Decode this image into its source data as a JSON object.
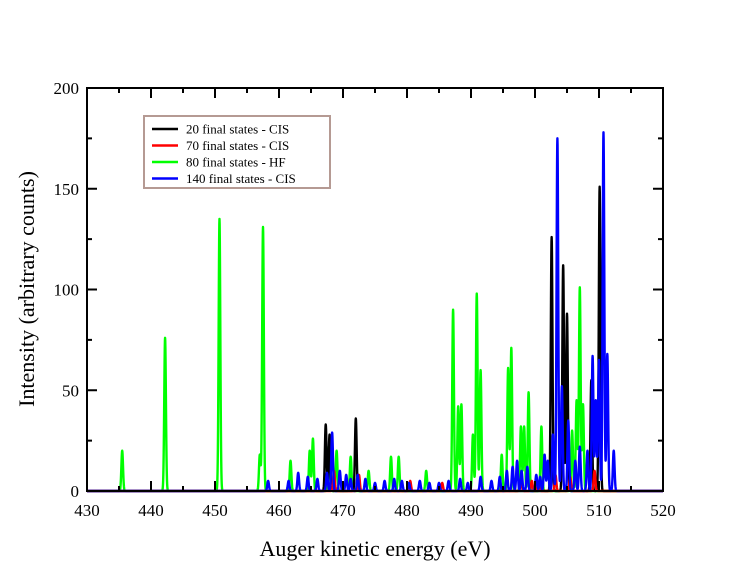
{
  "chart_data": {
    "type": "line",
    "title": "",
    "xlabel": "Auger kinetic energy (eV)",
    "ylabel": "Intensity (arbitrary counts)",
    "xlim": [
      430,
      520
    ],
    "ylim": [
      0,
      200
    ],
    "xticks": [
      430,
      440,
      450,
      460,
      470,
      480,
      490,
      500,
      510,
      520
    ],
    "yticks": [
      0,
      50,
      100,
      150,
      200
    ],
    "grid": false,
    "legend_position": "top-left",
    "series": [
      {
        "name": "80 final states - HF",
        "color": "#00ff00",
        "peaks": [
          [
            435.5,
            20
          ],
          [
            442.2,
            76
          ],
          [
            450.7,
            135
          ],
          [
            457.5,
            131
          ],
          [
            457.0,
            18
          ],
          [
            461.8,
            15
          ],
          [
            464.8,
            20
          ],
          [
            465.3,
            26
          ],
          [
            467.8,
            22
          ],
          [
            469.0,
            20
          ],
          [
            471.2,
            17
          ],
          [
            474.0,
            10
          ],
          [
            477.5,
            17
          ],
          [
            478.7,
            17
          ],
          [
            483.0,
            10
          ],
          [
            487.2,
            90
          ],
          [
            488.0,
            42
          ],
          [
            488.5,
            43
          ],
          [
            490.3,
            28
          ],
          [
            490.9,
            98
          ],
          [
            491.5,
            60
          ],
          [
            494.8,
            18
          ],
          [
            495.8,
            61
          ],
          [
            496.3,
            71
          ],
          [
            497.8,
            32
          ],
          [
            498.3,
            32
          ],
          [
            499.0,
            49
          ],
          [
            501.0,
            32
          ],
          [
            505.8,
            30
          ],
          [
            506.5,
            45
          ],
          [
            507.0,
            101
          ],
          [
            507.5,
            43
          ]
        ]
      },
      {
        "name": "20 final states - CIS",
        "color": "#000000",
        "peaks": [
          [
            467.3,
            33
          ],
          [
            467.9,
            28
          ],
          [
            472.0,
            36
          ],
          [
            502.6,
            126
          ],
          [
            504.4,
            112
          ],
          [
            505.0,
            88
          ],
          [
            508.8,
            55
          ],
          [
            510.1,
            151
          ]
        ]
      },
      {
        "name": "70 final states - CIS",
        "color": "#ff0000",
        "peaks": [
          [
            468.6,
            10
          ],
          [
            472.5,
            8
          ],
          [
            480.5,
            5
          ],
          [
            485.5,
            4
          ],
          [
            497.8,
            6
          ],
          [
            499.5,
            5
          ],
          [
            500.5,
            4
          ],
          [
            503.2,
            8
          ],
          [
            505.5,
            7
          ],
          [
            509.3,
            10
          ]
        ]
      },
      {
        "name": "140 final states - CIS",
        "color": "#0000ff",
        "peaks": [
          [
            458.3,
            5
          ],
          [
            461.5,
            5
          ],
          [
            463.0,
            9
          ],
          [
            464.5,
            7
          ],
          [
            466.0,
            6
          ],
          [
            467.5,
            9
          ],
          [
            468.3,
            29
          ],
          [
            469.5,
            10
          ],
          [
            470.5,
            8
          ],
          [
            471.2,
            6
          ],
          [
            472.3,
            8
          ],
          [
            473.5,
            6
          ],
          [
            475.0,
            4
          ],
          [
            476.5,
            5
          ],
          [
            478.0,
            6
          ],
          [
            479.2,
            5
          ],
          [
            480.3,
            4
          ],
          [
            482.0,
            5
          ],
          [
            483.5,
            4
          ],
          [
            485.0,
            4
          ],
          [
            486.5,
            5
          ],
          [
            488.3,
            6
          ],
          [
            489.5,
            4
          ],
          [
            491.5,
            7
          ],
          [
            493.2,
            5
          ],
          [
            494.5,
            7
          ],
          [
            495.6,
            10
          ],
          [
            496.5,
            12
          ],
          [
            497.2,
            15
          ],
          [
            497.9,
            10
          ],
          [
            498.8,
            12
          ],
          [
            500.2,
            8
          ],
          [
            500.8,
            7
          ],
          [
            501.5,
            18
          ],
          [
            502.0,
            15
          ],
          [
            502.8,
            28
          ],
          [
            503.5,
            175
          ],
          [
            504.2,
            52
          ],
          [
            505.2,
            35
          ],
          [
            506.3,
            15
          ],
          [
            507.0,
            22
          ],
          [
            508.2,
            20
          ],
          [
            509.0,
            67
          ],
          [
            509.5,
            45
          ],
          [
            510.0,
            65
          ],
          [
            510.7,
            178
          ],
          [
            511.3,
            68
          ],
          [
            512.3,
            20
          ]
        ]
      }
    ],
    "legend": [
      {
        "label": "20 final states - CIS",
        "color": "#000000"
      },
      {
        "label": "70 final states - CIS",
        "color": "#ff0000"
      },
      {
        "label": "80 final states - HF",
        "color": "#00ff00"
      },
      {
        "label": "140 final states - CIS",
        "color": "#0000ff"
      }
    ],
    "legend_border_color": "#b59a93"
  }
}
